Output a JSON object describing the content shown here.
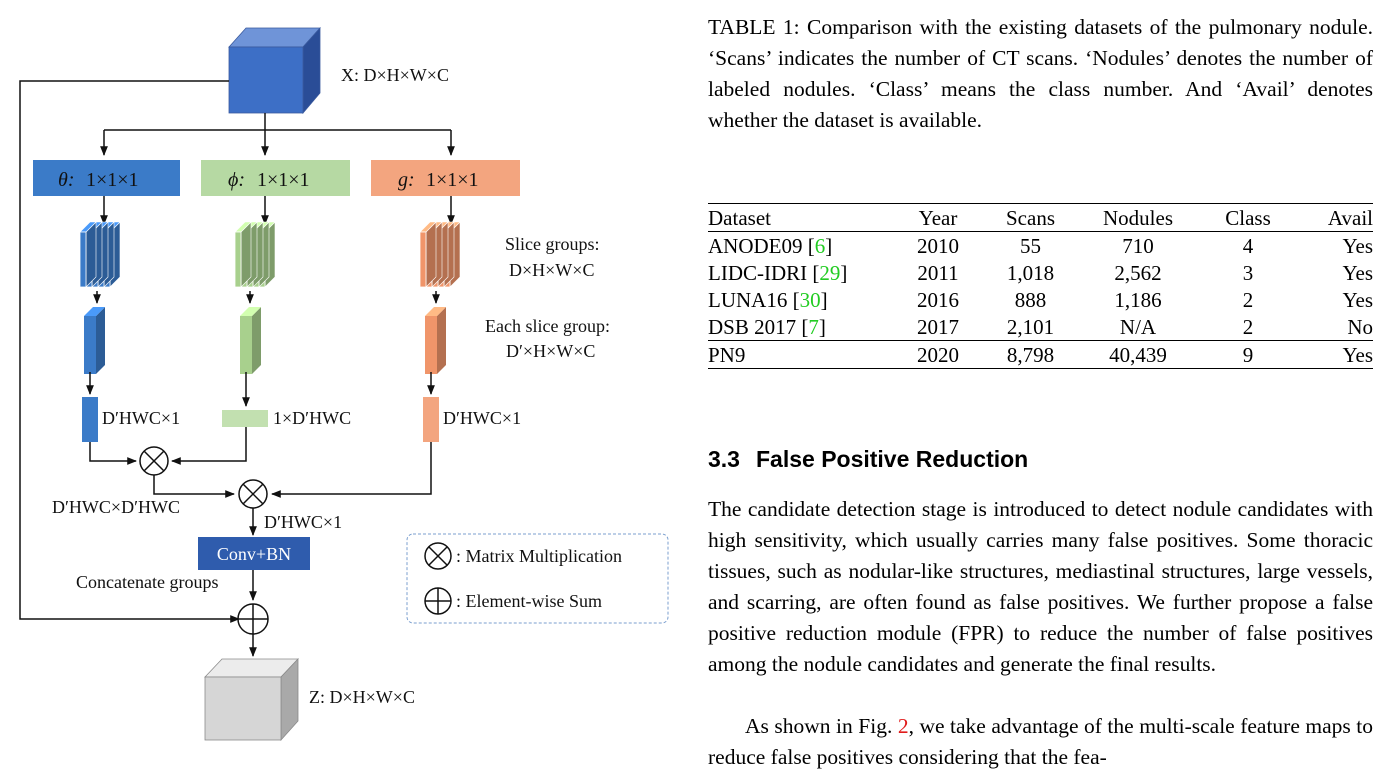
{
  "diagram": {
    "input_label": "X: D×H×W×C",
    "output_label": "Z: D×H×W×C",
    "theta_label": "1×1×1",
    "theta_symbol": "θ:",
    "phi_label": "1×1×1",
    "phi_symbol": "ϕ:",
    "g_label": "1×1×1",
    "g_symbol": "g:",
    "slice_groups_label_1": "Slice groups:",
    "slice_groups_label_2": "D×H×W×C",
    "each_slice_label_1": "Each slice group:",
    "each_slice_label_2": "D′×H×W×C",
    "theta_vec": "D′HWC×1",
    "phi_vec": "1×D′HWC",
    "g_vec": "D′HWC×1",
    "product_label": "D′HWC×D′HWC",
    "result_label": "D′HWC×1",
    "conv_label": "Conv+BN",
    "concat_label": "Concatenate groups",
    "legend_mul": ": Matrix Multiplication",
    "legend_sum": ": Element-wise Sum",
    "colors": {
      "blue": "#3b7bc8",
      "green": "#a8d08d",
      "orange": "#f0956a",
      "navy": "#2f5cad"
    }
  },
  "table": {
    "caption": "TABLE 1: Comparison with the existing datasets of the pulmonary nodule. ‘Scans’ indicates the number of CT scans. ‘Nodules’ denotes the number of labeled nodules. ‘Class’ means the class number. And ‘Avail’ denotes whether the dataset is available.",
    "headers": [
      "Dataset",
      "Year",
      "Scans",
      "Nodules",
      "Class",
      "Avail"
    ],
    "rows": [
      {
        "name": "ANODE09",
        "ref": "6",
        "year": "2010",
        "scans": "55",
        "nodules": "710",
        "class": "4",
        "avail": "Yes"
      },
      {
        "name": "LIDC-IDRI",
        "ref": "29",
        "year": "2011",
        "scans": "1,018",
        "nodules": "2,562",
        "class": "3",
        "avail": "Yes"
      },
      {
        "name": "LUNA16",
        "ref": "30",
        "year": "2016",
        "scans": "888",
        "nodules": "1,186",
        "class": "2",
        "avail": "Yes"
      },
      {
        "name": "DSB 2017",
        "ref": "7",
        "year": "2017",
        "scans": "2,101",
        "nodules": "N/A",
        "class": "2",
        "avail": "No"
      }
    ],
    "final_row": {
      "name": "PN9",
      "year": "2020",
      "scans": "8,798",
      "nodules": "40,439",
      "class": "9",
      "avail": "Yes"
    }
  },
  "section": {
    "number": "3.3",
    "title": "False Positive Reduction",
    "para1": "The candidate detection stage is introduced to detect nodule candidates with high sensitivity, which usually carries many false positives. Some thoracic tissues, such as nodular-like structures, mediastinal structures, large vessels, and scarring, are often found as false positives. We further propose a false positive reduction module (FPR) to reduce the number of false positives among the nodule candidates and generate the final results.",
    "para2_before": "As shown in Fig.",
    "para2_ref": "2",
    "para2_after": ", we take advantage of the multi-scale feature maps to reduce false positives considering that the fea-"
  }
}
